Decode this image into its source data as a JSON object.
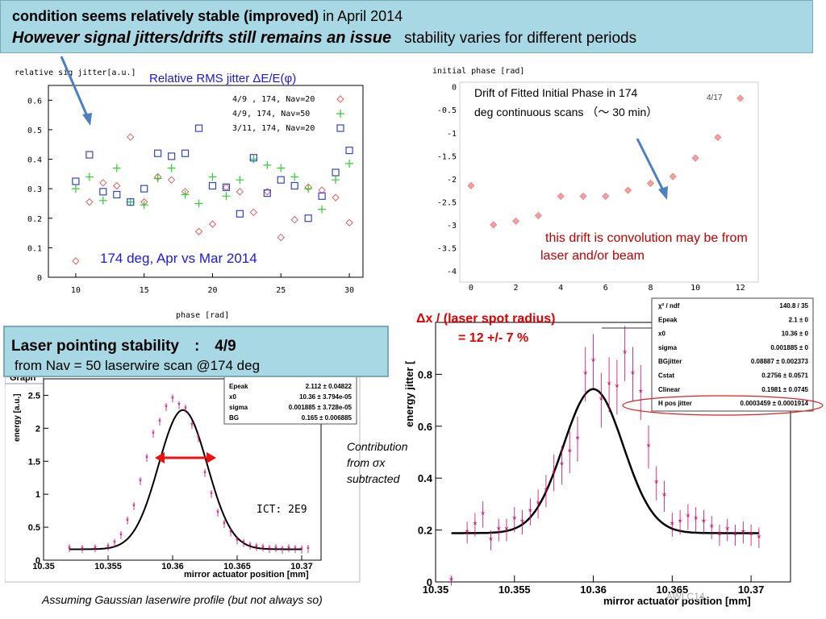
{
  "banner": {
    "line1_bold": "condition seems relatively stable (improved)",
    "line1_rest": " in April 2014",
    "line2_bold": "However signal jitters/drifts still remains an issue",
    "line2_rest": "stability varies for different periods"
  },
  "laser_box": {
    "title": "Laser pointing stability　:　4/9",
    "subtitle": "from Nav = 50 laserwire scan @174 deg"
  },
  "annotations": {
    "drift_note_1": "this drift is convolution may be from",
    "drift_note_2": "laser and/or  beam",
    "dx_line1": "Δx / (laser spot radius)",
    "dx_line2": "= 12 +/- 7 %",
    "contribution_1": "Contribution",
    "contribution_2": "from σx",
    "contribution_3": "subtracted",
    "caption": "Assuming Gaussian laserwire profile   (but not always so)",
    "ict": "ICT:  2E9",
    "footer": "AWLC14"
  },
  "colors": {
    "accent_red": "#cc0000",
    "banner": "#a9d8e5",
    "arrow_blue": "#4a7fc1",
    "marker_red": "#e06060",
    "marker_green": "#33cc33",
    "marker_blue": "#3344cc",
    "fit_pink": "#d1006b"
  },
  "chart_data": [
    {
      "type": "scatter",
      "title": "Relative RMS jitter ΔE/E(φ)",
      "ylabel": "relative sig jitter[a.u.]",
      "xlabel": "phase [rad]",
      "xlim": [
        8,
        31
      ],
      "ylim": [
        0,
        0.65
      ],
      "xticks": [
        "10",
        "15",
        "20",
        "25",
        "30"
      ],
      "yticks": [
        "0",
        "0.1",
        "0.2",
        "0.3",
        "0.4",
        "0.5",
        "0.6"
      ],
      "annotation": "174 deg, Apr vs Mar 2014",
      "series": [
        {
          "name": "4/9 , 174, Nav=20",
          "marker": "diamond",
          "x": [
            10,
            11,
            12,
            13,
            14,
            15,
            16,
            17,
            18,
            19,
            20,
            21,
            22,
            23,
            24,
            25,
            26,
            27,
            28,
            29,
            30
          ],
          "y": [
            0.055,
            0.255,
            0.32,
            0.31,
            0.475,
            0.255,
            0.34,
            0.33,
            0.29,
            0.155,
            0.18,
            0.305,
            0.29,
            0.22,
            0.29,
            0.135,
            0.195,
            0.305,
            0.295,
            0.27,
            0.185
          ]
        },
        {
          "name": "4/9, 174, Nav=50",
          "marker": "plus",
          "x": [
            10,
            11,
            12,
            13,
            14,
            15,
            16,
            17,
            18,
            19,
            20,
            21,
            22,
            23,
            24,
            25,
            26,
            27,
            28,
            29,
            30
          ],
          "y": [
            0.3,
            0.34,
            0.26,
            0.37,
            0.255,
            0.245,
            0.335,
            0.37,
            0.28,
            0.25,
            0.34,
            0.275,
            0.33,
            0.4,
            0.38,
            0.37,
            0.34,
            0.3,
            0.23,
            0.33,
            0.385
          ]
        },
        {
          "name": "3/11, 174, Nav=20",
          "marker": "square",
          "x": [
            10,
            11,
            12,
            13,
            14,
            15,
            16,
            17,
            18,
            19,
            20,
            21,
            22,
            23,
            24,
            25,
            26,
            27,
            28,
            29,
            30
          ],
          "y": [
            0.325,
            0.415,
            0.29,
            0.28,
            0.255,
            0.3,
            0.42,
            0.41,
            0.42,
            0.505,
            0.31,
            0.305,
            0.215,
            0.405,
            0.285,
            0.33,
            0.31,
            0.2,
            0.275,
            0.355,
            0.43
          ]
        }
      ]
    },
    {
      "type": "scatter",
      "ylabel": "initial phase [rad]",
      "xlim": [
        -0.5,
        12.8
      ],
      "ylim": [
        -4,
        0.1
      ],
      "xticks": [
        "0",
        "2",
        "4",
        "6",
        "8",
        "10",
        "12"
      ],
      "yticks": [
        "0",
        "-0.5",
        "-1",
        "-1.5",
        "-2",
        "-2.5",
        "-3",
        "-3.5",
        "-4"
      ],
      "annotation_1": "Drift of Fitted Initial Phase in 174",
      "annotation_2": "deg continuous scans （〜 30 min）",
      "corner_label": "4/17",
      "x": [
        0,
        1,
        2,
        3,
        4,
        5,
        6,
        7,
        8,
        9,
        10,
        11,
        12
      ],
      "y": [
        -2.15,
        -3.0,
        -2.92,
        -2.8,
        -2.38,
        -2.38,
        -2.38,
        -2.25,
        -2.1,
        -1.95,
        -1.55,
        -1.1,
        -0.25
      ]
    },
    {
      "type": "scatter",
      "title": "Graph",
      "ylabel": "energy [a.u.]",
      "xlabel": "mirror actuator position [mm]",
      "xlim": [
        10.35,
        10.3715
      ],
      "ylim": [
        0,
        2.75
      ],
      "xticks": [
        "10.35",
        "10.355",
        "10.36",
        "10.365",
        "10.37"
      ],
      "yticks": [
        "0",
        "0.5",
        "1",
        "1.5",
        "2",
        "2.5"
      ],
      "fit_table": [
        [
          "Epeak",
          "2.112 ± 0.04822"
        ],
        [
          "x0",
          "10.36 ± 3.794e-05"
        ],
        [
          "sigma",
          "0.001885 ± 3.728e-05"
        ],
        [
          "BG",
          "0.165 ± 0.006885"
        ]
      ],
      "fit": {
        "peak": 2.112,
        "x0": 10.3608,
        "sigma": 0.001885,
        "bg": 0.165
      },
      "x": [
        10.352,
        10.353,
        10.354,
        10.355,
        10.3555,
        10.356,
        10.3565,
        10.357,
        10.3575,
        10.358,
        10.3585,
        10.359,
        10.3595,
        10.36,
        10.3605,
        10.361,
        10.3615,
        10.362,
        10.3625,
        10.363,
        10.3635,
        10.364,
        10.3645,
        10.365,
        10.3655,
        10.366,
        10.3665,
        10.367,
        10.3675,
        10.368,
        10.3685,
        10.369,
        10.3695,
        10.37,
        10.3705
      ],
      "y": [
        0.18,
        0.17,
        0.18,
        0.2,
        0.26,
        0.38,
        0.6,
        0.82,
        1.2,
        1.55,
        1.92,
        2.1,
        2.32,
        2.45,
        2.35,
        2.3,
        2.05,
        1.85,
        1.32,
        1.0,
        0.72,
        0.55,
        0.42,
        0.3,
        0.26,
        0.22,
        0.2,
        0.19,
        0.17,
        0.18,
        0.16,
        0.18,
        0.17,
        0.16,
        0.17
      ]
    },
    {
      "type": "scatter",
      "ylabel": "energy jitter [",
      "xlabel": "mirror actuator position [mm]",
      "xlim": [
        10.35,
        10.3725
      ],
      "ylim": [
        0,
        1.0
      ],
      "xticks": [
        "10.35",
        "10.355",
        "10.36",
        "10.365",
        "10.37"
      ],
      "yticks": [
        "0",
        "0.2",
        "0.4",
        "0.6",
        "0.8"
      ],
      "fit_table": [
        [
          "χ² / ndf",
          "140.8 / 35"
        ],
        [
          "Epeak",
          "2.1 ±      0"
        ],
        [
          "x0",
          "10.36 ±      0"
        ],
        [
          "sigma",
          "0.001885 ±      0"
        ],
        [
          "BGjitter",
          "0.08887 ± 0.002373"
        ],
        [
          "Cstat",
          "0.2756 ± 0.0571"
        ],
        [
          "Clinear",
          "0.1981 ± 0.0745"
        ],
        [
          "H pos jitter",
          "0.0003459 ± 0.0001914"
        ]
      ],
      "fit": {
        "peak": 0.555,
        "x0": 10.36,
        "sigma": 0.0019,
        "bg": 0.188
      },
      "x": [
        10.351,
        10.352,
        10.3525,
        10.353,
        10.3535,
        10.354,
        10.3545,
        10.355,
        10.3555,
        10.356,
        10.3565,
        10.357,
        10.3575,
        10.358,
        10.3585,
        10.359,
        10.3595,
        10.36,
        10.3605,
        10.361,
        10.3615,
        10.362,
        10.3625,
        10.363,
        10.3635,
        10.364,
        10.3645,
        10.365,
        10.3655,
        10.366,
        10.3665,
        10.367,
        10.3675,
        10.368,
        10.3685,
        10.369,
        10.3695,
        10.37,
        10.3705
      ],
      "y": [
        0.005,
        0.19,
        0.22,
        0.26,
        0.16,
        0.2,
        0.2,
        0.24,
        0.23,
        0.27,
        0.3,
        0.35,
        0.42,
        0.45,
        0.5,
        0.55,
        0.8,
        0.85,
        0.7,
        0.76,
        0.75,
        0.88,
        0.8,
        0.73,
        0.52,
        0.38,
        0.33,
        0.22,
        0.23,
        0.25,
        0.24,
        0.23,
        0.21,
        0.18,
        0.2,
        0.18,
        0.19,
        0.18,
        0.17
      ]
    }
  ]
}
